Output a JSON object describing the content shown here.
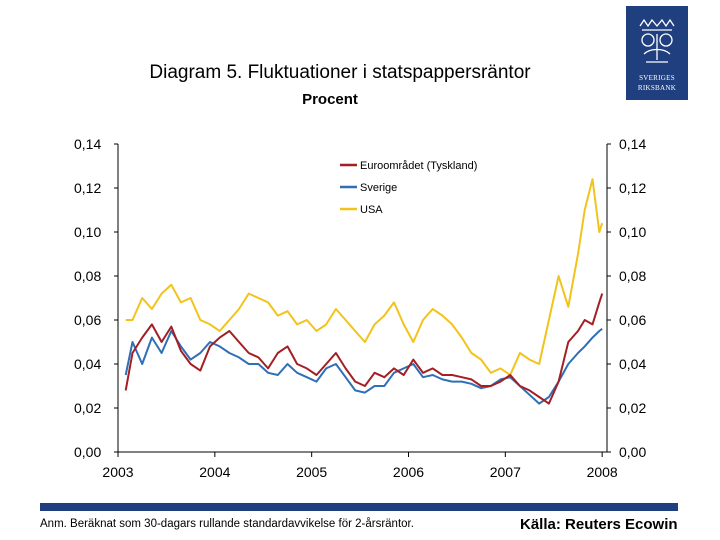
{
  "page": {
    "footnote": "Anm. Beräknat som 30-dagars rullande standardavvikelse för 2-årsräntor.",
    "source": "Källa: Reuters Ecowin",
    "logo": {
      "line1": "SVERIGES",
      "line2": "RIKSBANK"
    }
  },
  "colors": {
    "euro": "#a31f24",
    "sweden": "#2f6fb6",
    "usa": "#f2c31b",
    "brand": "#1f3f7f"
  },
  "chart_data": {
    "type": "line",
    "title": "Diagram 5. Fluktuationer i statspappersräntor",
    "subtitle": "Procent",
    "x_ticks": [
      "2003",
      "2004",
      "2005",
      "2006",
      "2007",
      "2008"
    ],
    "y_ticks_left": [
      "0,00",
      "0,02",
      "0,04",
      "0,06",
      "0,08",
      "0,10",
      "0,12",
      "0,14"
    ],
    "y_ticks_right": [
      "0,00",
      "0,02",
      "0,04",
      "0,06",
      "0,08",
      "0,10",
      "0,12",
      "0,14"
    ],
    "xlim": [
      2003.0,
      2008.05
    ],
    "ylim": [
      0,
      0.14
    ],
    "series": [
      {
        "name": "Euroområdet (Tyskland)",
        "color_key": "euro",
        "x": [
          2003.08,
          2003.15,
          2003.25,
          2003.35,
          2003.45,
          2003.55,
          2003.65,
          2003.75,
          2003.85,
          2003.95,
          2004.05,
          2004.15,
          2004.25,
          2004.35,
          2004.45,
          2004.55,
          2004.65,
          2004.75,
          2004.85,
          2004.95,
          2005.05,
          2005.15,
          2005.25,
          2005.35,
          2005.45,
          2005.55,
          2005.65,
          2005.75,
          2005.85,
          2005.95,
          2006.05,
          2006.15,
          2006.25,
          2006.35,
          2006.45,
          2006.55,
          2006.65,
          2006.75,
          2006.85,
          2006.95,
          2007.05,
          2007.15,
          2007.25,
          2007.35,
          2007.45,
          2007.55,
          2007.65,
          2007.75,
          2007.82,
          2007.9,
          2007.97,
          2008.0
        ],
        "y": [
          0.028,
          0.045,
          0.052,
          0.058,
          0.05,
          0.057,
          0.046,
          0.04,
          0.037,
          0.048,
          0.052,
          0.055,
          0.05,
          0.045,
          0.043,
          0.038,
          0.045,
          0.048,
          0.04,
          0.038,
          0.035,
          0.04,
          0.045,
          0.038,
          0.032,
          0.03,
          0.036,
          0.034,
          0.038,
          0.035,
          0.042,
          0.036,
          0.038,
          0.035,
          0.035,
          0.034,
          0.033,
          0.03,
          0.03,
          0.032,
          0.035,
          0.03,
          0.028,
          0.025,
          0.022,
          0.032,
          0.05,
          0.055,
          0.06,
          0.058,
          0.068,
          0.072
        ]
      },
      {
        "name": "Sverige",
        "color_key": "sweden",
        "x": [
          2003.08,
          2003.15,
          2003.25,
          2003.35,
          2003.45,
          2003.55,
          2003.65,
          2003.75,
          2003.85,
          2003.95,
          2004.05,
          2004.15,
          2004.25,
          2004.35,
          2004.45,
          2004.55,
          2004.65,
          2004.75,
          2004.85,
          2004.95,
          2005.05,
          2005.15,
          2005.25,
          2005.35,
          2005.45,
          2005.55,
          2005.65,
          2005.75,
          2005.85,
          2005.95,
          2006.05,
          2006.15,
          2006.25,
          2006.35,
          2006.45,
          2006.55,
          2006.65,
          2006.75,
          2006.85,
          2006.95,
          2007.05,
          2007.15,
          2007.25,
          2007.35,
          2007.45,
          2007.55,
          2007.65,
          2007.75,
          2007.82,
          2007.9,
          2007.97,
          2008.0
        ],
        "y": [
          0.035,
          0.05,
          0.04,
          0.052,
          0.045,
          0.055,
          0.048,
          0.042,
          0.045,
          0.05,
          0.048,
          0.045,
          0.043,
          0.04,
          0.04,
          0.036,
          0.035,
          0.04,
          0.036,
          0.034,
          0.032,
          0.038,
          0.04,
          0.034,
          0.028,
          0.027,
          0.03,
          0.03,
          0.036,
          0.038,
          0.04,
          0.034,
          0.035,
          0.033,
          0.032,
          0.032,
          0.031,
          0.029,
          0.03,
          0.033,
          0.034,
          0.03,
          0.026,
          0.022,
          0.025,
          0.032,
          0.04,
          0.045,
          0.048,
          0.052,
          0.055,
          0.056
        ]
      },
      {
        "name": "USA",
        "color_key": "usa",
        "x": [
          2003.08,
          2003.15,
          2003.25,
          2003.35,
          2003.45,
          2003.55,
          2003.65,
          2003.75,
          2003.85,
          2003.95,
          2004.05,
          2004.15,
          2004.25,
          2004.35,
          2004.45,
          2004.55,
          2004.65,
          2004.75,
          2004.85,
          2004.95,
          2005.05,
          2005.15,
          2005.25,
          2005.35,
          2005.45,
          2005.55,
          2005.65,
          2005.75,
          2005.85,
          2005.95,
          2006.05,
          2006.15,
          2006.25,
          2006.35,
          2006.45,
          2006.55,
          2006.65,
          2006.75,
          2006.85,
          2006.95,
          2007.05,
          2007.15,
          2007.25,
          2007.35,
          2007.45,
          2007.55,
          2007.65,
          2007.75,
          2007.82,
          2007.9,
          2007.97,
          2008.0
        ],
        "y": [
          0.06,
          0.06,
          0.07,
          0.065,
          0.072,
          0.076,
          0.068,
          0.07,
          0.06,
          0.058,
          0.055,
          0.06,
          0.065,
          0.072,
          0.07,
          0.068,
          0.062,
          0.064,
          0.058,
          0.06,
          0.055,
          0.058,
          0.065,
          0.06,
          0.055,
          0.05,
          0.058,
          0.062,
          0.068,
          0.058,
          0.05,
          0.06,
          0.065,
          0.062,
          0.058,
          0.052,
          0.045,
          0.042,
          0.036,
          0.038,
          0.035,
          0.045,
          0.042,
          0.04,
          0.06,
          0.08,
          0.066,
          0.09,
          0.11,
          0.124,
          0.1,
          0.104
        ]
      }
    ],
    "legend_position": "top-right"
  }
}
